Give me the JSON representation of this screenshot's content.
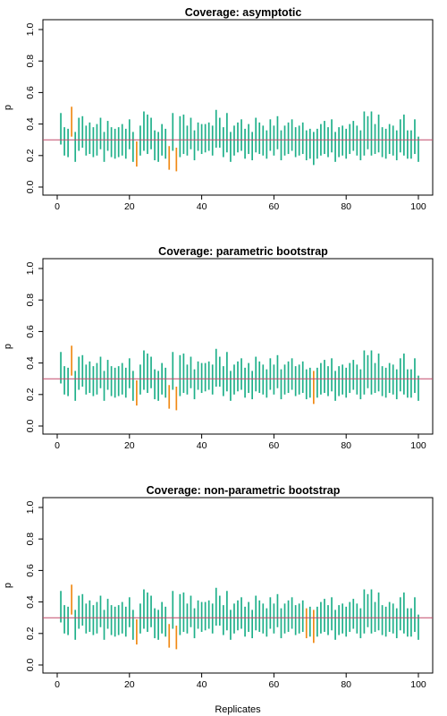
{
  "colors": {
    "covered": "#1fb08a",
    "missed": "#f08a16",
    "true_value_line": "#c24a6a",
    "axis": "#000000",
    "background": "#ffffff"
  },
  "chart_data": [
    {
      "type": "interval",
      "title": "Coverage: asymptotic",
      "xlabel": "",
      "ylabel": "p",
      "xlim": [
        0,
        100
      ],
      "ylim": [
        0,
        1
      ],
      "xticks": [
        0,
        20,
        40,
        60,
        80,
        100
      ],
      "yticks": [
        "0.0",
        "0.2",
        "0.4",
        "0.6",
        "0.8",
        "1.0"
      ],
      "reference_line": 0.3,
      "missed_replicates": [
        4,
        22,
        31,
        33
      ]
    },
    {
      "type": "interval",
      "title": "Coverage: parametric bootstrap",
      "xlabel": "",
      "ylabel": "p",
      "xlim": [
        0,
        100
      ],
      "ylim": [
        0,
        1
      ],
      "xticks": [
        0,
        20,
        40,
        60,
        80,
        100
      ],
      "yticks": [
        "0.0",
        "0.2",
        "0.4",
        "0.6",
        "0.8",
        "1.0"
      ],
      "reference_line": 0.3,
      "missed_replicates": [
        4,
        22,
        31,
        33,
        71
      ]
    },
    {
      "type": "interval",
      "title": "Coverage: non-parametric bootstrap",
      "xlabel": "Replicates",
      "ylabel": "p",
      "xlim": [
        0,
        100
      ],
      "ylim": [
        0,
        1
      ],
      "xticks": [
        0,
        20,
        40,
        60,
        80,
        100
      ],
      "yticks": [
        "0.0",
        "0.2",
        "0.4",
        "0.6",
        "0.8",
        "1.0"
      ],
      "reference_line": 0.3,
      "missed_replicates": [
        4,
        22,
        31,
        33,
        69,
        71
      ]
    }
  ],
  "intervals": {
    "lower": [
      0.27,
      0.2,
      0.19,
      0.32,
      0.16,
      0.23,
      0.25,
      0.2,
      0.21,
      0.19,
      0.2,
      0.24,
      0.16,
      0.23,
      0.19,
      0.18,
      0.19,
      0.2,
      0.18,
      0.24,
      0.16,
      0.13,
      0.2,
      0.23,
      0.21,
      0.24,
      0.17,
      0.16,
      0.2,
      0.18,
      0.11,
      0.23,
      0.1,
      0.19,
      0.21,
      0.2,
      0.24,
      0.17,
      0.23,
      0.21,
      0.22,
      0.23,
      0.2,
      0.25,
      0.25,
      0.19,
      0.22,
      0.16,
      0.2,
      0.22,
      0.23,
      0.18,
      0.21,
      0.17,
      0.22,
      0.21,
      0.2,
      0.18,
      0.23,
      0.2,
      0.24,
      0.17,
      0.2,
      0.21,
      0.23,
      0.19,
      0.2,
      0.21,
      0.17,
      0.18,
      0.14,
      0.18,
      0.2,
      0.21,
      0.19,
      0.22,
      0.16,
      0.19,
      0.2,
      0.18,
      0.21,
      0.23,
      0.2,
      0.17,
      0.2,
      0.24,
      0.2,
      0.21,
      0.22,
      0.19,
      0.18,
      0.21,
      0.2,
      0.17,
      0.22,
      0.2,
      0.18,
      0.18,
      0.21,
      0.16
    ],
    "upper": [
      0.47,
      0.38,
      0.37,
      0.51,
      0.35,
      0.44,
      0.45,
      0.39,
      0.41,
      0.38,
      0.4,
      0.44,
      0.35,
      0.42,
      0.38,
      0.37,
      0.38,
      0.4,
      0.37,
      0.43,
      0.35,
      0.29,
      0.39,
      0.48,
      0.46,
      0.44,
      0.36,
      0.35,
      0.4,
      0.37,
      0.26,
      0.47,
      0.25,
      0.45,
      0.46,
      0.39,
      0.44,
      0.36,
      0.41,
      0.4,
      0.4,
      0.41,
      0.39,
      0.49,
      0.44,
      0.38,
      0.47,
      0.35,
      0.39,
      0.41,
      0.43,
      0.37,
      0.4,
      0.35,
      0.44,
      0.41,
      0.39,
      0.36,
      0.43,
      0.39,
      0.45,
      0.36,
      0.39,
      0.41,
      0.43,
      0.38,
      0.39,
      0.41,
      0.36,
      0.37,
      0.35,
      0.37,
      0.4,
      0.42,
      0.38,
      0.43,
      0.35,
      0.38,
      0.39,
      0.37,
      0.4,
      0.42,
      0.39,
      0.36,
      0.48,
      0.45,
      0.48,
      0.4,
      0.46,
      0.38,
      0.37,
      0.4,
      0.39,
      0.36,
      0.43,
      0.46,
      0.36,
      0.36,
      0.43,
      0.32
    ]
  }
}
